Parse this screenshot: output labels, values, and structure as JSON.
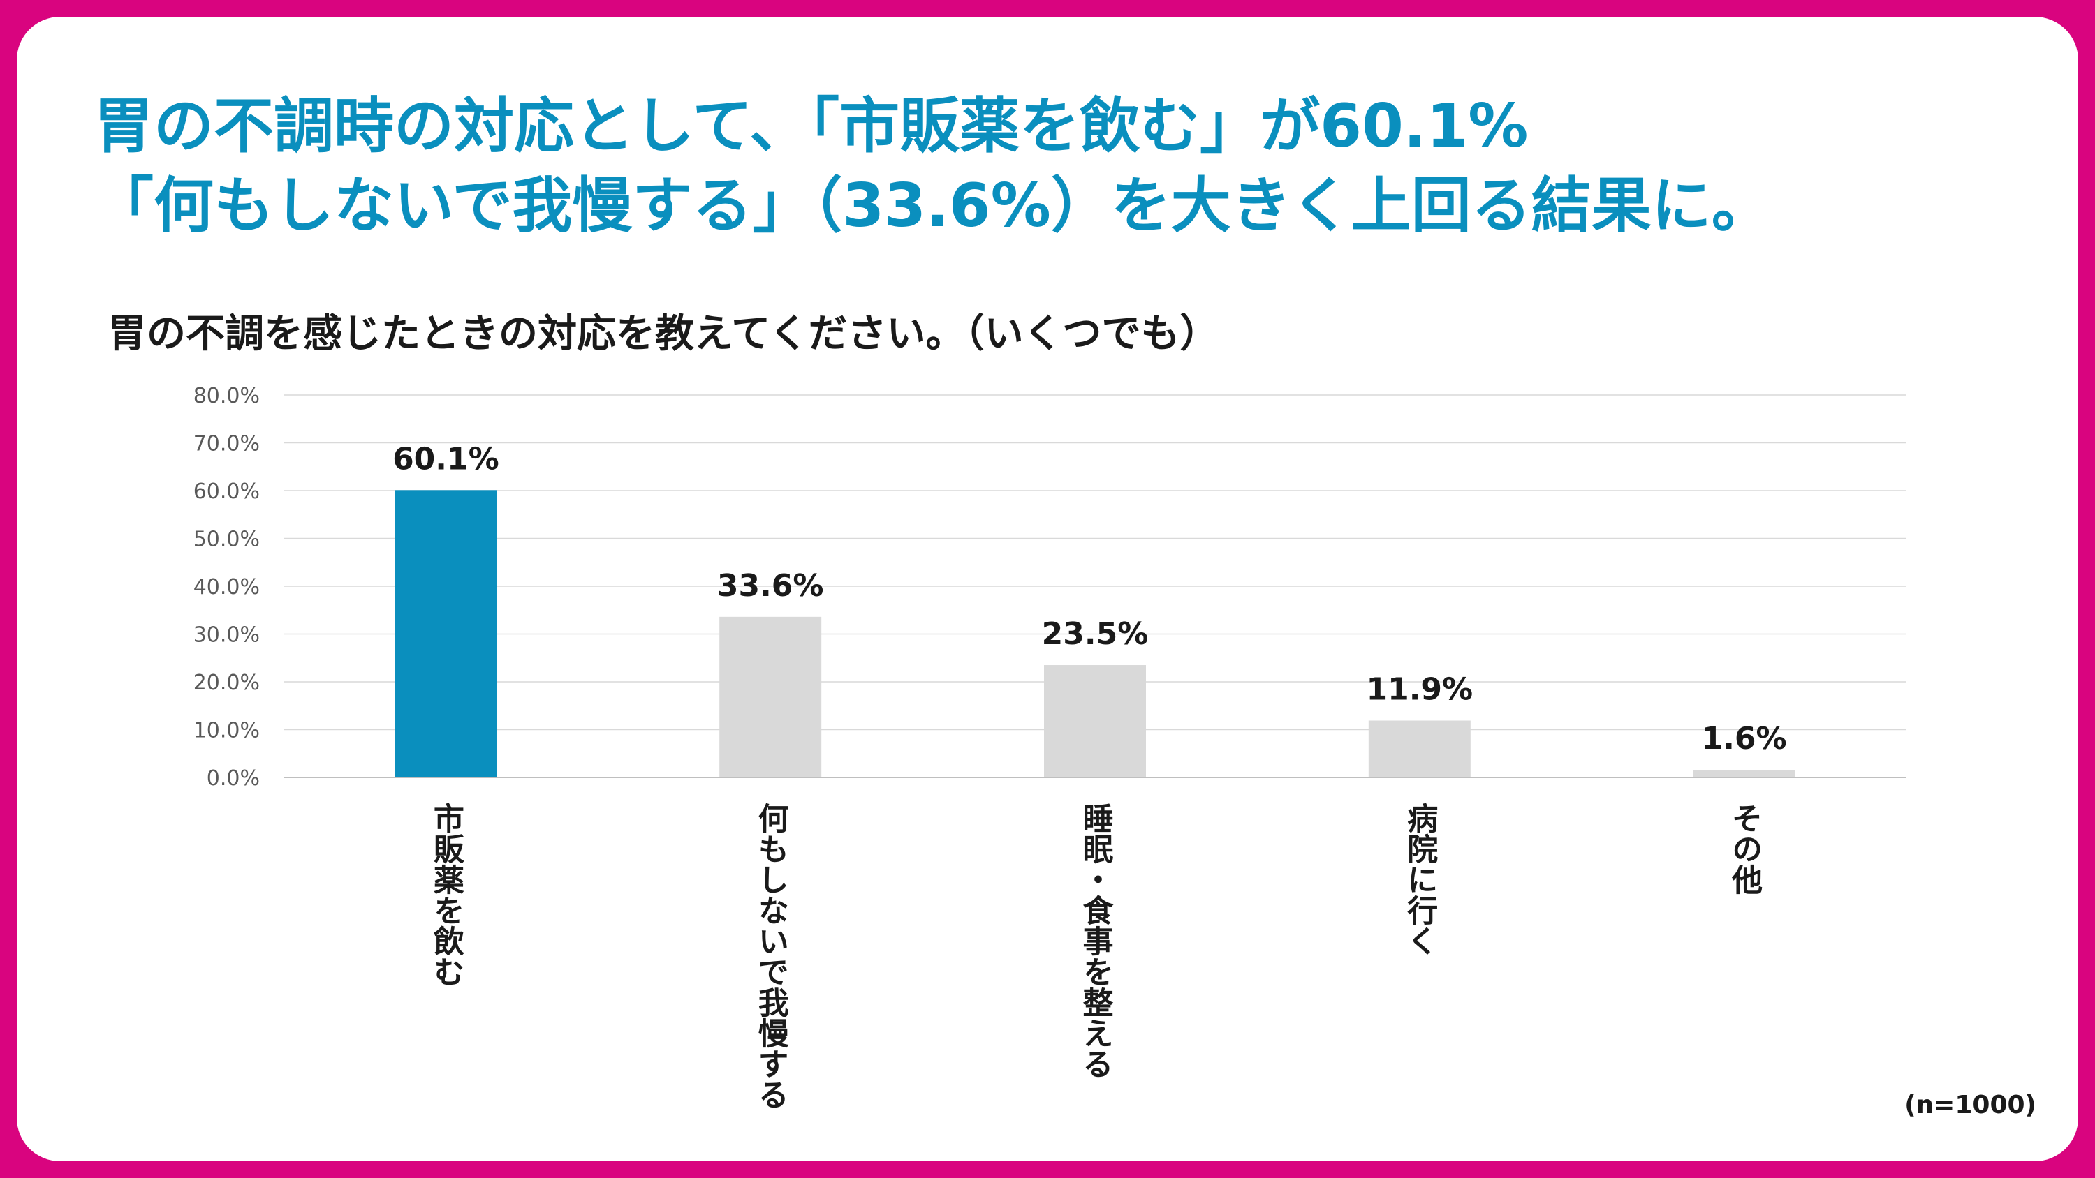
{
  "headline": {
    "line1": "胃の不調時の対応として、「市販薬を飲む」が60.1%",
    "line2": "「何もしないで我慢する」（33.6%）を大きく上回る結果に。"
  },
  "question": "胃の不調を感じたときの対応を教えてください。（いくつでも）",
  "note": "(n=1000)",
  "colors": {
    "border": "#D9047F",
    "title": "#0A8FBE",
    "highlight_bar": "#0A8FBE",
    "other_bar": "#D9D9D9"
  },
  "chart_data": {
    "type": "bar",
    "categories": [
      "市販薬を飲む",
      "何もしないで我慢する",
      "睡眠・食事を整える",
      "病院に行く",
      "その他"
    ],
    "values": [
      60.1,
      33.6,
      23.5,
      11.9,
      1.6
    ],
    "value_labels": [
      "60.1%",
      "33.6%",
      "23.5%",
      "11.9%",
      "1.6%"
    ],
    "highlight_index": 0,
    "ylim": [
      0,
      80
    ],
    "yticks": [
      "0.0%",
      "10.0%",
      "20.0%",
      "30.0%",
      "40.0%",
      "50.0%",
      "60.0%",
      "70.0%",
      "80.0%"
    ],
    "grid": true
  }
}
